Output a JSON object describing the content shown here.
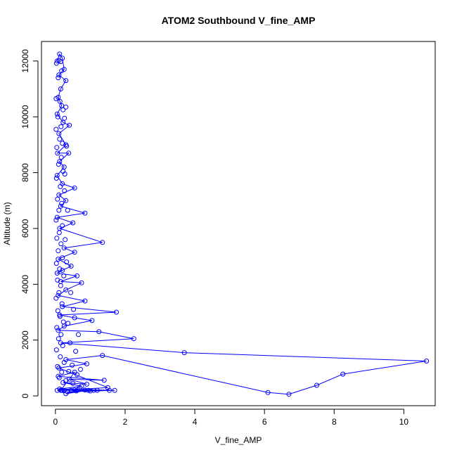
{
  "chart_data": {
    "type": "scatter",
    "title": "ATOM2 Southbound V_fine_AMP",
    "xlabel": "V_fine_AMP",
    "ylabel": "Altitude (m)",
    "xlim": [
      -0.4,
      10.9
    ],
    "ylim": [
      -350,
      12700
    ],
    "xticks": [
      0,
      2,
      4,
      6,
      8,
      10
    ],
    "yticks": [
      0,
      2000,
      4000,
      6000,
      8000,
      10000,
      12000
    ],
    "grid": false,
    "legend": "none",
    "color": "#0000ff",
    "series": [
      {
        "style": "points+lines",
        "points": [
          [
            0.05,
            12000
          ],
          [
            0.12,
            12250
          ],
          [
            0.2,
            12100
          ],
          [
            0.25,
            11700
          ],
          [
            0.1,
            11500
          ],
          [
            0.3,
            11300
          ],
          [
            0.15,
            11000
          ],
          [
            0.08,
            10700
          ],
          [
            0.18,
            10400
          ],
          [
            0.05,
            10100
          ],
          [
            0.22,
            9800
          ],
          [
            0.4,
            9700
          ],
          [
            0.1,
            9400
          ],
          [
            0.3,
            9000
          ],
          [
            0.06,
            8700
          ],
          [
            0.38,
            8700
          ],
          [
            0.12,
            8400
          ],
          [
            0.25,
            8200
          ],
          [
            0.05,
            7900
          ],
          [
            0.2,
            7600
          ],
          [
            0.55,
            7450
          ],
          [
            0.1,
            7200
          ],
          [
            0.3,
            7000
          ],
          [
            0.15,
            6800
          ],
          [
            0.85,
            6550
          ],
          [
            0.05,
            6400
          ],
          [
            0.5,
            6200
          ],
          [
            0.12,
            6000
          ],
          [
            1.35,
            5500
          ],
          [
            0.25,
            5300
          ],
          [
            0.55,
            5150
          ],
          [
            0.08,
            4900
          ],
          [
            0.45,
            4650
          ],
          [
            0.2,
            4500
          ],
          [
            0.05,
            4400
          ],
          [
            0.62,
            4300
          ],
          [
            0.15,
            4100
          ],
          [
            0.75,
            4050
          ],
          [
            0.3,
            3800
          ],
          [
            0.08,
            3600
          ],
          [
            0.85,
            3400
          ],
          [
            0.2,
            3200
          ],
          [
            1.75,
            3000
          ],
          [
            0.12,
            2900
          ],
          [
            0.55,
            2800
          ],
          [
            1.05,
            2700
          ],
          [
            0.25,
            2500
          ],
          [
            0.08,
            2350
          ],
          [
            1.25,
            2300
          ],
          [
            2.25,
            2050
          ],
          [
            0.15,
            1900
          ],
          [
            3.7,
            1550
          ],
          [
            10.65,
            1250
          ],
          [
            8.25,
            780
          ],
          [
            7.5,
            380
          ],
          [
            6.7,
            60
          ],
          [
            6.1,
            120
          ],
          [
            1.35,
            1450
          ],
          [
            0.3,
            1300
          ],
          [
            0.9,
            1150
          ],
          [
            0.1,
            1000
          ],
          [
            1.5,
            300
          ],
          [
            0.2,
            200
          ],
          [
            1.55,
            200
          ],
          [
            0.05,
            200
          ],
          [
            1.1,
            200
          ],
          [
            0.35,
            150
          ],
          [
            1.7,
            200
          ],
          [
            0.12,
            250
          ],
          [
            0.75,
            350
          ],
          [
            0.22,
            480
          ],
          [
            0.9,
            420
          ],
          [
            0.4,
            600
          ],
          [
            1.4,
            560
          ],
          [
            0.08,
            700
          ],
          [
            0.55,
            850
          ],
          [
            0.15,
            200
          ],
          [
            0.65,
            220
          ],
          [
            0.3,
            80
          ],
          [
            0.95,
            200
          ],
          [
            0.18,
            210
          ]
        ]
      },
      {
        "style": "points",
        "points": [
          [
            0.1,
            12020
          ],
          [
            0.15,
            11980
          ],
          [
            0.03,
            11920
          ],
          [
            0.18,
            11650
          ],
          [
            0.08,
            11400
          ],
          [
            0.02,
            10650
          ],
          [
            0.13,
            10550
          ],
          [
            0.22,
            10250
          ],
          [
            0.07,
            10000
          ],
          [
            0.16,
            9650
          ],
          [
            0.02,
            9550
          ],
          [
            0.12,
            9200
          ],
          [
            0.2,
            9050
          ],
          [
            0.04,
            8900
          ],
          [
            0.17,
            8550
          ],
          [
            0.09,
            8300
          ],
          [
            0.22,
            8050
          ],
          [
            0.03,
            7800
          ],
          [
            0.14,
            7500
          ],
          [
            0.26,
            7350
          ],
          [
            0.06,
            7050
          ],
          [
            0.18,
            6900
          ],
          [
            0.1,
            6650
          ],
          [
            0.02,
            6300
          ],
          [
            0.2,
            6100
          ],
          [
            0.11,
            5850
          ],
          [
            0.04,
            5650
          ],
          [
            0.16,
            5450
          ],
          [
            0.08,
            5200
          ],
          [
            0.2,
            4950
          ],
          [
            0.03,
            4750
          ],
          [
            0.12,
            4550
          ],
          [
            0.24,
            4300
          ],
          [
            0.06,
            4150
          ],
          [
            0.15,
            3950
          ],
          [
            0.1,
            3700
          ],
          [
            0.02,
            3500
          ],
          [
            0.19,
            3300
          ],
          [
            0.07,
            3050
          ],
          [
            0.13,
            2850
          ],
          [
            0.23,
            2650
          ],
          [
            0.04,
            2450
          ],
          [
            0.16,
            2200
          ],
          [
            0.09,
            2050
          ],
          [
            0.21,
            1800
          ],
          [
            0.03,
            1650
          ],
          [
            0.14,
            1400
          ],
          [
            0.25,
            1200
          ],
          [
            0.06,
            1050
          ],
          [
            0.18,
            850
          ],
          [
            0.11,
            650
          ],
          [
            0.3,
            550
          ],
          [
            0.5,
            450
          ],
          [
            0.7,
            300
          ],
          [
            0.45,
            200
          ],
          [
            0.6,
            180
          ],
          [
            0.85,
            210
          ],
          [
            1.0,
            180
          ],
          [
            1.2,
            200
          ],
          [
            0.25,
            190
          ],
          [
            0.55,
            210
          ],
          [
            0.38,
            880
          ],
          [
            0.62,
            760
          ],
          [
            0.48,
            1100
          ],
          [
            0.72,
            950
          ],
          [
            0.58,
            1600
          ],
          [
            0.42,
            1900
          ],
          [
            0.66,
            2200
          ],
          [
            0.36,
            2600
          ],
          [
            0.52,
            3100
          ],
          [
            0.44,
            3700
          ],
          [
            0.32,
            4800
          ],
          [
            0.28,
            5600
          ],
          [
            0.35,
            6650
          ],
          [
            0.27,
            7950
          ],
          [
            0.32,
            8950
          ],
          [
            0.26,
            9950
          ],
          [
            0.3,
            10350
          ]
        ]
      }
    ]
  }
}
